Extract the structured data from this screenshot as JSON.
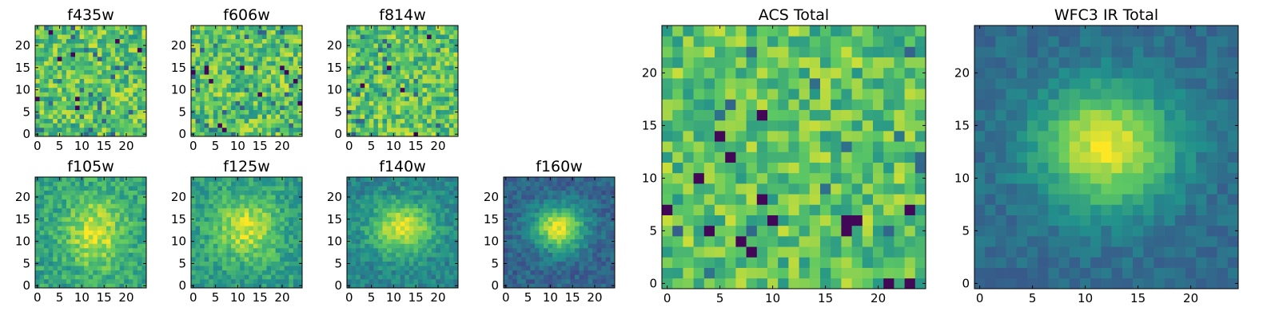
{
  "colormap": "viridis",
  "colors": {
    "viridis": [
      "#440154",
      "#3b528b",
      "#21918c",
      "#5ec962",
      "#fde725"
    ],
    "frame": "#000000",
    "background": "#ffffff"
  },
  "chart_data": [
    {
      "type": "heatmap",
      "title": "f435w",
      "grid_size": 25,
      "x_ticks": [
        0,
        5,
        10,
        15,
        20
      ],
      "y_ticks": [
        0,
        5,
        10,
        15,
        20
      ],
      "pattern": "noise",
      "level": 0.72,
      "contrast": 0.22,
      "seed": 11
    },
    {
      "type": "heatmap",
      "title": "f606w",
      "grid_size": 25,
      "x_ticks": [
        0,
        5,
        10,
        15,
        20
      ],
      "y_ticks": [
        0,
        5,
        10,
        15,
        20
      ],
      "pattern": "noise",
      "level": 0.72,
      "contrast": 0.22,
      "seed": 23
    },
    {
      "type": "heatmap",
      "title": "f814w",
      "grid_size": 25,
      "x_ticks": [
        0,
        5,
        10,
        15,
        20
      ],
      "y_ticks": [
        0,
        5,
        10,
        15,
        20
      ],
      "pattern": "noise",
      "level": 0.72,
      "contrast": 0.22,
      "seed": 37
    },
    {
      "type": "heatmap",
      "title": "f105w",
      "grid_size": 25,
      "x_ticks": [
        0,
        5,
        10,
        15,
        20
      ],
      "y_ticks": [
        0,
        5,
        10,
        15,
        20
      ],
      "pattern": "blob",
      "blob_center": [
        13,
        12
      ],
      "blob_sigma": [
        4.5,
        5.5
      ],
      "background_level": 0.58,
      "peak_level": 0.94,
      "noise": 0.14,
      "seed": 41
    },
    {
      "type": "heatmap",
      "title": "f125w",
      "grid_size": 25,
      "x_ticks": [
        0,
        5,
        10,
        15,
        20
      ],
      "y_ticks": [
        0,
        5,
        10,
        15,
        20
      ],
      "pattern": "blob",
      "blob_center": [
        12,
        13
      ],
      "blob_sigma": [
        5,
        5
      ],
      "background_level": 0.55,
      "peak_level": 0.92,
      "noise": 0.13,
      "seed": 53
    },
    {
      "type": "heatmap",
      "title": "f140w",
      "grid_size": 25,
      "x_ticks": [
        0,
        5,
        10,
        15,
        20
      ],
      "y_ticks": [
        0,
        5,
        10,
        15,
        20
      ],
      "pattern": "blob",
      "blob_center": [
        12,
        13
      ],
      "blob_sigma": [
        5,
        4
      ],
      "background_level": 0.45,
      "peak_level": 0.95,
      "noise": 0.11,
      "seed": 61
    },
    {
      "type": "heatmap",
      "title": "f160w",
      "grid_size": 25,
      "x_ticks": [
        0,
        5,
        10,
        15,
        20
      ],
      "y_ticks": [
        0,
        5,
        10,
        15,
        20
      ],
      "pattern": "blob",
      "blob_center": [
        12,
        13
      ],
      "blob_sigma": [
        4,
        3.5
      ],
      "background_level": 0.32,
      "peak_level": 0.97,
      "noise": 0.1,
      "seed": 71
    },
    {
      "type": "heatmap",
      "title": "ACS Total",
      "grid_size": 25,
      "x_ticks": [
        0,
        5,
        10,
        15,
        20
      ],
      "y_ticks": [
        0,
        5,
        10,
        15,
        20
      ],
      "pattern": "noise",
      "level": 0.72,
      "contrast": 0.2,
      "seed": 83
    },
    {
      "type": "heatmap",
      "title": "WFC3 IR Total",
      "grid_size": 25,
      "x_ticks": [
        0,
        5,
        10,
        15,
        20
      ],
      "y_ticks": [
        0,
        5,
        10,
        15,
        20
      ],
      "pattern": "blob",
      "blob_center": [
        12,
        13
      ],
      "blob_sigma": [
        4.5,
        4
      ],
      "background_level": 0.35,
      "peak_level": 0.97,
      "noise": 0.07,
      "seed": 97
    }
  ]
}
